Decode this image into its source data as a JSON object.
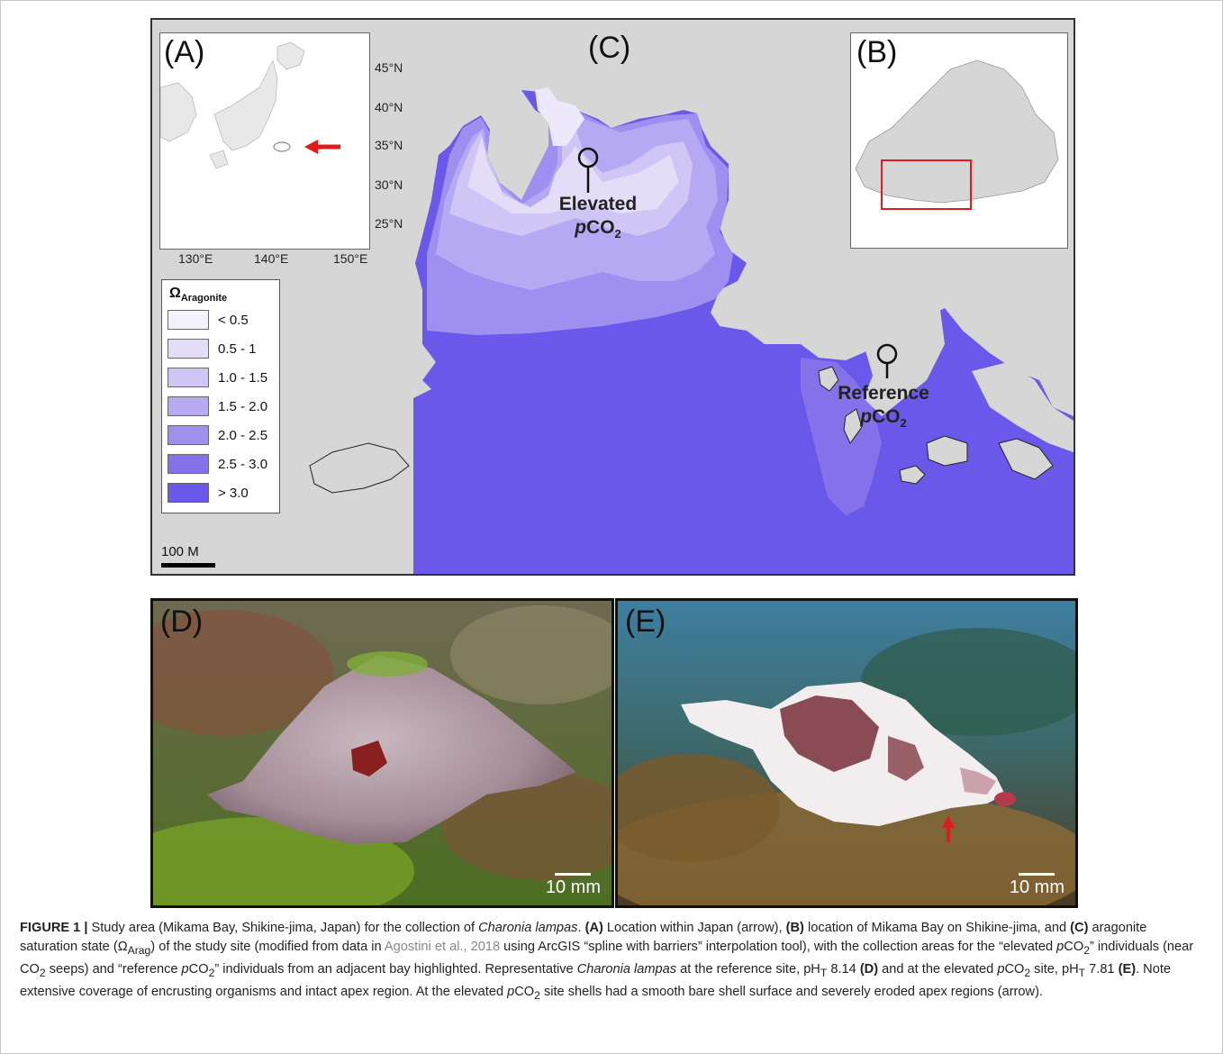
{
  "panels": {
    "a": "(A)",
    "b": "(B)",
    "c": "(C)",
    "d": "(D)",
    "e": "(E)"
  },
  "inset_a": {
    "lat_labels": [
      "45°N",
      "40°N",
      "35°N",
      "30°N",
      "25°N"
    ],
    "lon_labels": [
      "130°E",
      "140°E",
      "150°E"
    ]
  },
  "legend": {
    "title_main": "Ω",
    "title_sub": "Aragonite",
    "items": [
      {
        "label": "< 0.5",
        "color": "#f4f2fb"
      },
      {
        "label": "0.5 - 1",
        "color": "#e4ddf8"
      },
      {
        "label": "1.0 - 1.5",
        "color": "#d0c6f6"
      },
      {
        "label": "1.5 - 2.0",
        "color": "#b8aaf2"
      },
      {
        "label": "2.0 - 2.5",
        "color": "#a090ee"
      },
      {
        "label": "2.5 - 3.0",
        "color": "#8572eb"
      },
      {
        "label": "> 3.0",
        "color": "#6a58ea"
      }
    ]
  },
  "scalebar": "100 M",
  "sites": {
    "elevated_line1": "Elevated",
    "elevated_line2_italic": "p",
    "elevated_line2": "CO",
    "elevated_sub": "2",
    "reference_line1": "Reference",
    "reference_line2_italic": "p",
    "reference_line2": "CO",
    "reference_sub": "2"
  },
  "photos": {
    "d_scale": "10 mm",
    "e_scale": "10 mm"
  },
  "colors": {
    "sea": "#6a58ea",
    "land": "#d6d6d6",
    "arrow": "#e01b1b",
    "highlight_box": "#e01b1b"
  },
  "caption": {
    "fig_label": "FIGURE 1 |",
    "t1": " Study area (Mikama Bay, Shikine-jima, Japan) for the collection of ",
    "species1": "Charonia lampas",
    "t2": ". ",
    "a_ref": "(A)",
    "t3": " Location within Japan (arrow), ",
    "b_ref": "(B)",
    "t4": " location of Mikama Bay on Shikine-jima, and ",
    "c_ref": "(C)",
    "t5": " aragonite saturation state (Ω",
    "t5_sub": "Arag",
    "t6": ") of the study site (modified from data in ",
    "citation": "Agostini et al., 2018",
    "t7": " using ArcGIS “spline with barriers” interpolation tool), with the collection areas for the “elevated ",
    "t8_i": "p",
    "t8": "CO",
    "t8_sub": "2",
    "t9": "” individuals (near CO",
    "t9_sub": "2",
    "t10": " seeps) and “reference ",
    "t10_i": "p",
    "t10b": "CO",
    "t10_sub": "2",
    "t11": "” individuals from an adjacent bay highlighted. Representative ",
    "species2": "Charonia lampas",
    "t12": " at the reference site, pH",
    "t12_sub": "T",
    "t13": " 8.14 ",
    "d_ref": "(D)",
    "t14": " and at the elevated ",
    "t14_i": "p",
    "t14b": "CO",
    "t14_sub": "2",
    "t15": " site, pH",
    "t15_sub": "T",
    "t16": " 7.81 ",
    "e_ref": "(E)",
    "t17": ". Note extensive coverage of encrusting organisms and intact apex region. At the elevated ",
    "t17_i": "p",
    "t17b": "CO",
    "t17_sub": "2",
    "t18": " site shells had a smooth bare shell surface and severely eroded apex regions (arrow)."
  }
}
